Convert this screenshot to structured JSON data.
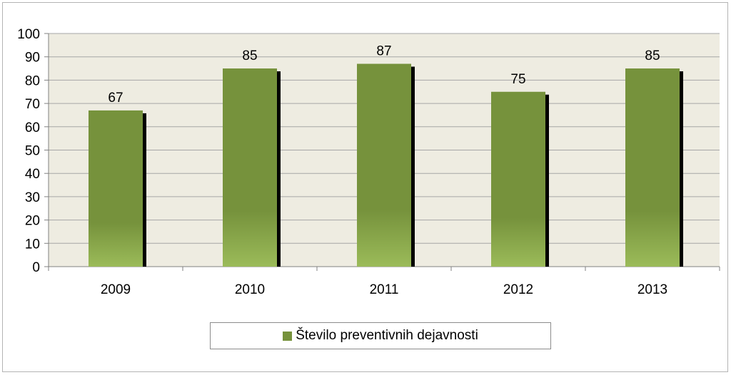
{
  "chart_data": {
    "type": "bar",
    "categories": [
      "2009",
      "2010",
      "2011",
      "2012",
      "2013"
    ],
    "series": [
      {
        "name": "Število preventivnih dejavnosti",
        "values": [
          67,
          85,
          87,
          75,
          85
        ]
      }
    ],
    "ylim": [
      0,
      100
    ],
    "yticks": [
      0,
      10,
      20,
      30,
      40,
      50,
      60,
      70,
      80,
      90,
      100
    ],
    "data_labels": true,
    "grid": true,
    "legend": "bottom",
    "colors": {
      "bar_top": "#76923c",
      "bar_bottom": "#9bbb59",
      "shadow": "#000000",
      "plot_background": "#eeece1",
      "gridline": "#a6a6a6"
    }
  }
}
